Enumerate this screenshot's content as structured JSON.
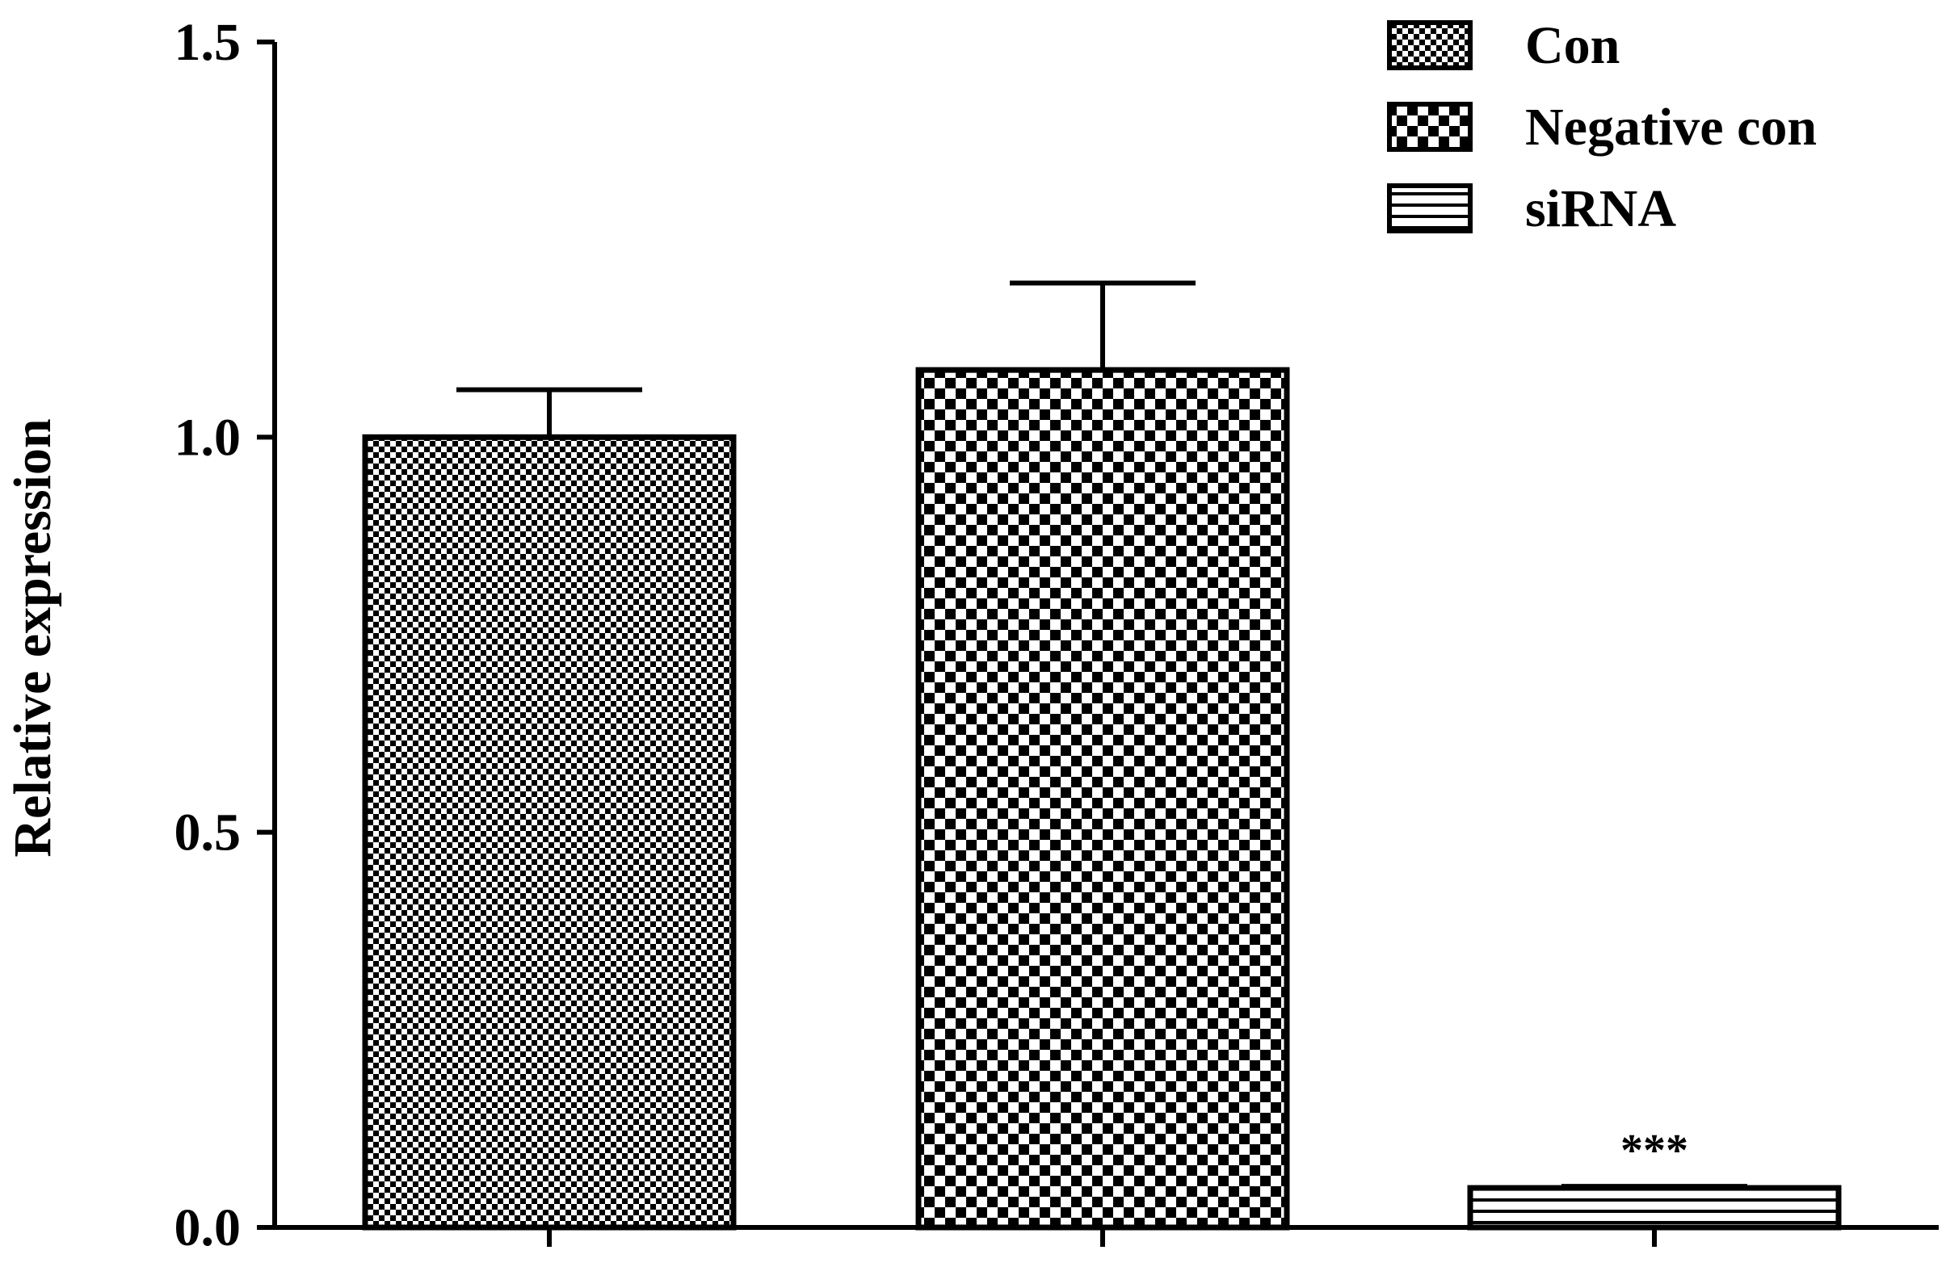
{
  "chart_data": {
    "type": "bar",
    "title": "",
    "xlabel": "",
    "ylabel": "Relative expression",
    "ylim": [
      0,
      1.5
    ],
    "yticks": [
      "0.0",
      "0.5",
      "1.0",
      "1.5"
    ],
    "grid": false,
    "legend_position": "top-right",
    "series": [
      {
        "name": "Con",
        "value": 1.0,
        "error": 0.06,
        "pattern": "fine-dots"
      },
      {
        "name": "Negative con",
        "value": 1.085,
        "error": 0.11,
        "pattern": "checkerboard"
      },
      {
        "name": "siRNA",
        "value": 0.05,
        "error": 0.002,
        "pattern": "horizontal-lines",
        "annotation": "***"
      }
    ]
  },
  "colors": {
    "axis": "#000000",
    "bar_outline": "#000000",
    "background": "#ffffff"
  }
}
